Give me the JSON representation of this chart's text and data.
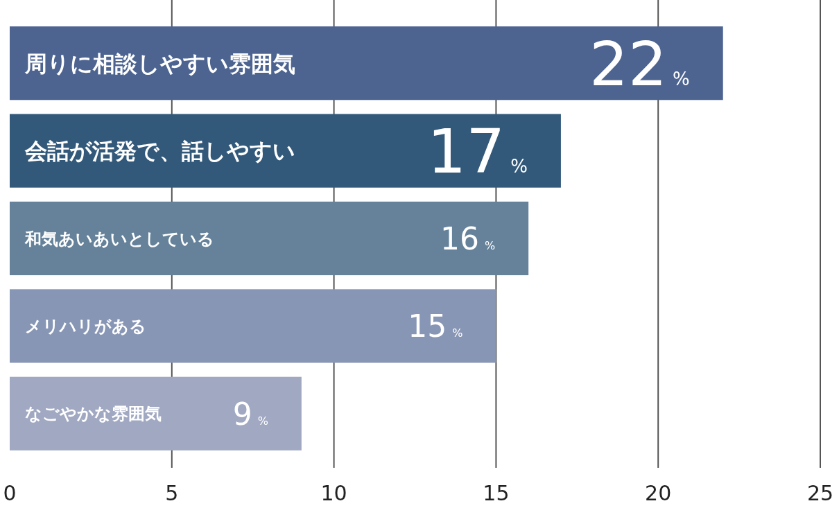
{
  "chart_data": {
    "type": "bar",
    "orientation": "horizontal",
    "categories": [
      "周りに相談しやすい雰囲気",
      "会話が活発で、話しやすい",
      "和気あいあいとしている",
      "メリハリがある",
      "なごやかな雰囲気"
    ],
    "values": [
      22,
      17,
      16,
      15,
      9
    ],
    "value_labels": [
      "22%",
      "17%",
      "16%",
      "15%",
      "9%"
    ],
    "colors": [
      "#4d6491",
      "#32597a",
      "#65829a",
      "#8896b5",
      "#a0a8c2"
    ],
    "xlim": [
      0,
      25
    ],
    "xticks": [
      0,
      5,
      10,
      15,
      20,
      25
    ],
    "grid": "x"
  }
}
